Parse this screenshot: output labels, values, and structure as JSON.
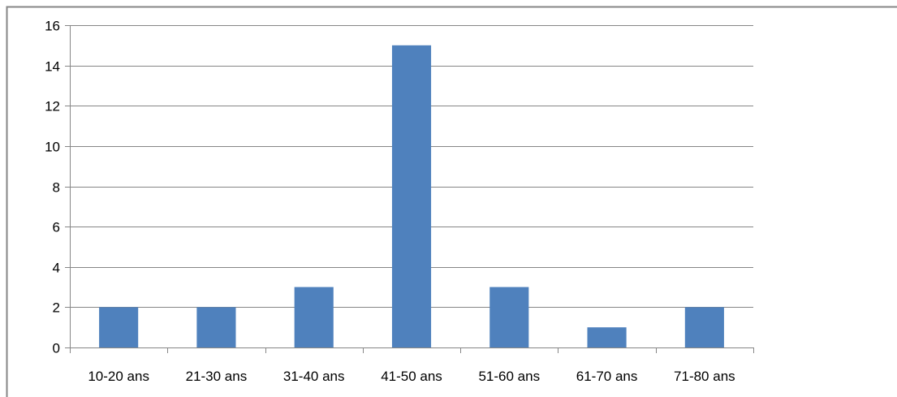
{
  "chart_data": {
    "type": "bar",
    "title": "",
    "xlabel": "",
    "ylabel": "",
    "categories": [
      "10-20 ans",
      "21-30 ans",
      "31-40 ans",
      "41-50 ans",
      "51-60 ans",
      "61-70 ans",
      "71-80 ans"
    ],
    "values": [
      2,
      2,
      3,
      15,
      3,
      1,
      2
    ],
    "ylim": [
      0,
      16
    ],
    "yticks": [
      0,
      2,
      4,
      6,
      8,
      10,
      12,
      14,
      16
    ],
    "grid": true,
    "legend": "none",
    "bar_color": "#4F81BD",
    "grid_color": "#868686",
    "frame_color": "#868686"
  }
}
